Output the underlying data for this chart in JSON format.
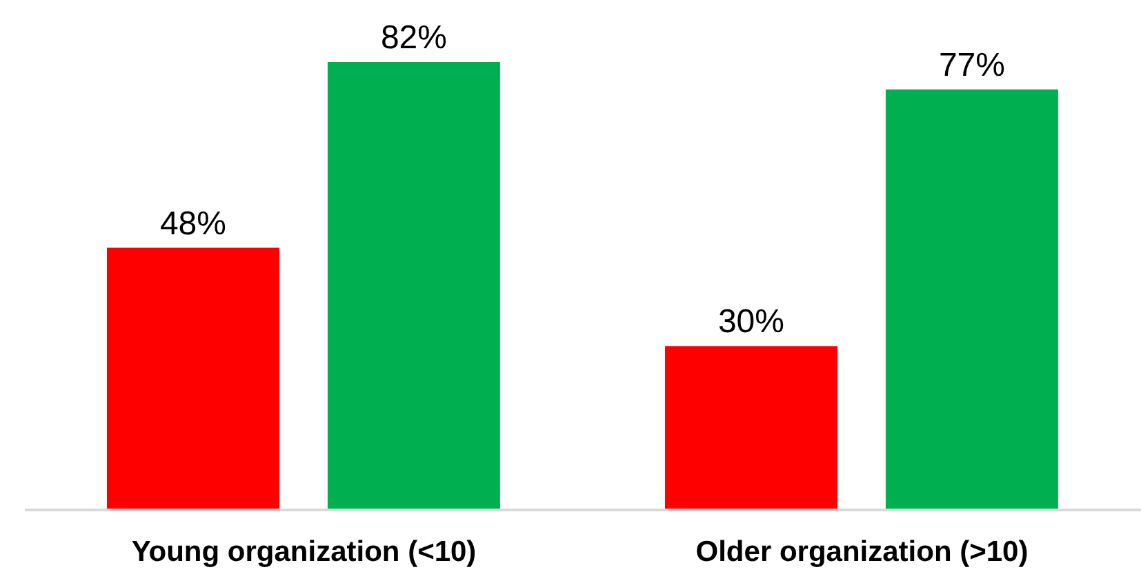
{
  "chart_data": {
    "type": "bar",
    "categories": [
      "Young organization (<10)",
      "Older organization (>10)"
    ],
    "series": [
      {
        "color": "#ff0000",
        "values": [
          48,
          30
        ],
        "value_labels": [
          "48%",
          "30%"
        ]
      },
      {
        "color": "#00b050",
        "values": [
          82,
          77
        ],
        "value_labels": [
          "82%",
          "77%"
        ]
      }
    ]
  }
}
